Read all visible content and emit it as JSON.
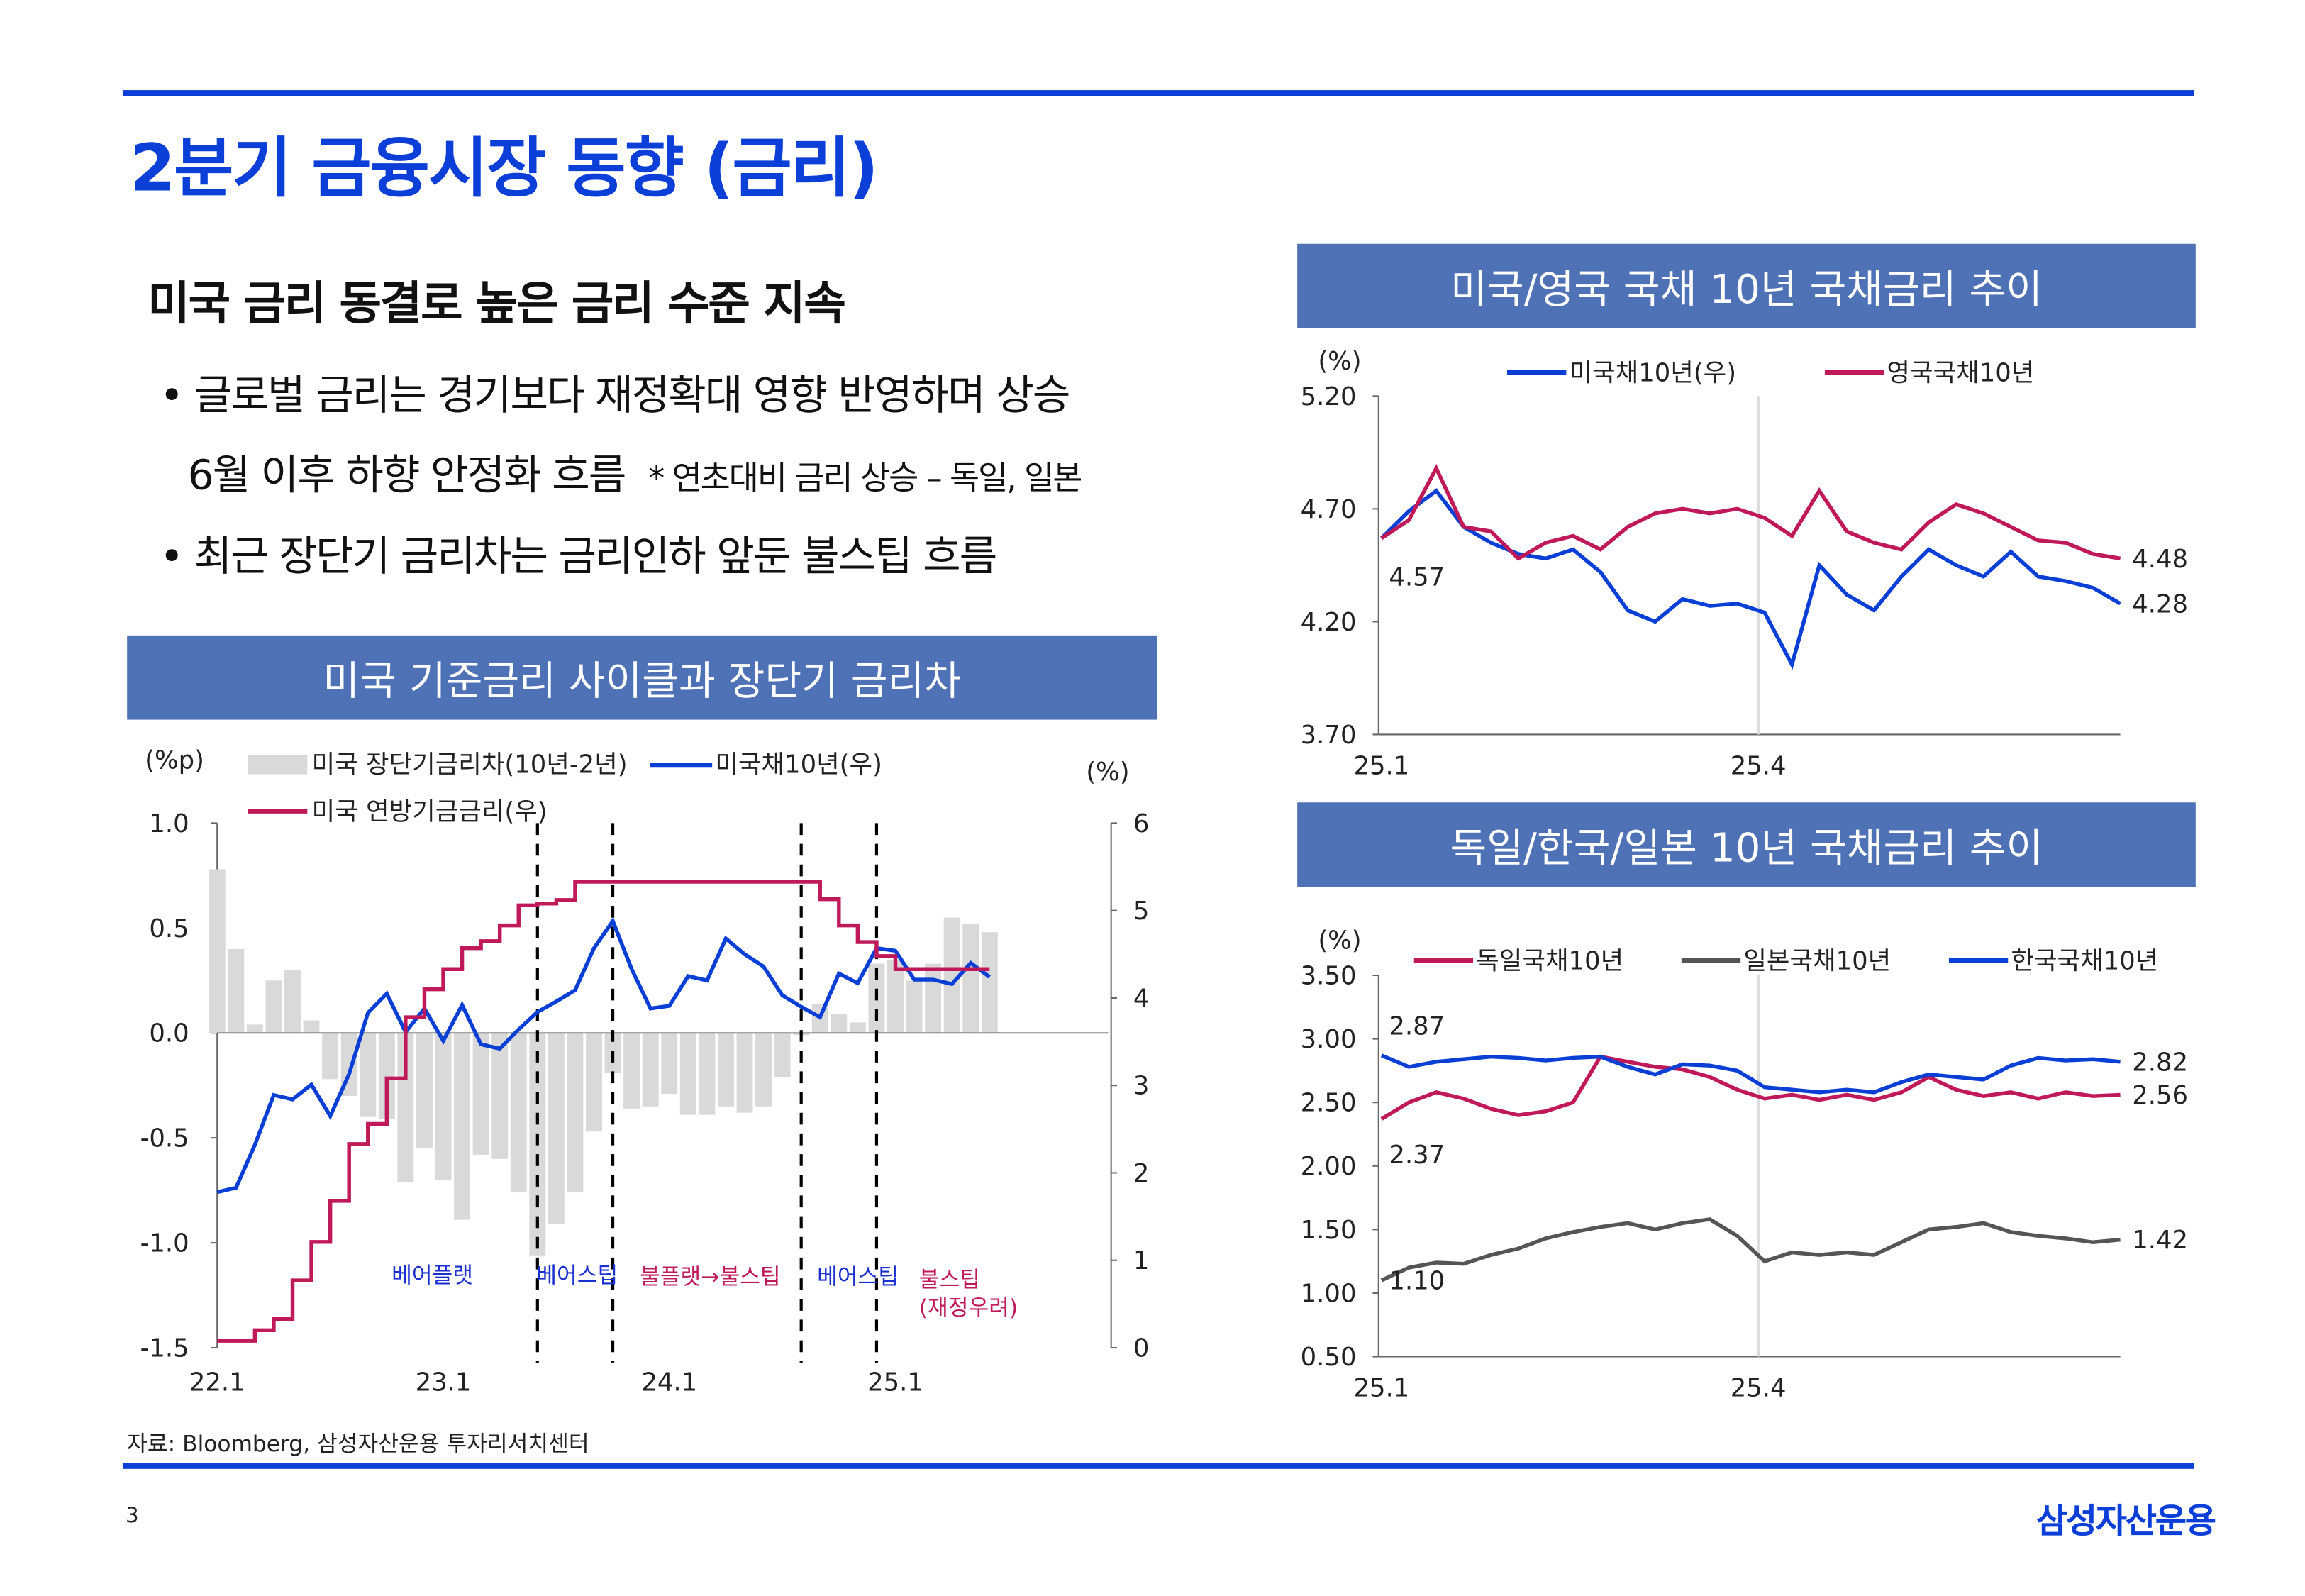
{
  "page": {
    "title": "2분기 금융시장 동향 (금리)",
    "subtitle": "미국 금리 동결로 높은 금리 수준 지속",
    "bullets": [
      "• 글로벌 금리는 경기보다 재정확대 영향 반영하며 상승",
      "6월 이후 하향 안정화 흐름",
      "• 최근 장단기 금리차는 금리인하 앞둔 불스팁 흐름"
    ],
    "note": "* 연초대비 금리 상승 – 독일, 일본",
    "source": "자료: Bloomberg, 삼성자산운용 투자리서치센터",
    "page_number": "3",
    "logo": "삼성자산운용",
    "accent": "#0b3fd8",
    "header_color": "#4f72b6"
  },
  "chart_data": [
    {
      "title": "미국 기준금리 사이클과 장단기 금리차",
      "type": "bar+line",
      "left_unit": "(%p)",
      "right_unit": "(%)",
      "ylim_left": [
        -1.5,
        1.0
      ],
      "yticks_left": [
        "1.0",
        "0.5",
        "0.0",
        "-0.5",
        "-1.0",
        "-1.5"
      ],
      "ylim_right": [
        0,
        6
      ],
      "yticks_right": [
        "6",
        "5",
        "4",
        "3",
        "2",
        "1",
        "0"
      ],
      "xticks": [
        "22.1",
        "23.1",
        "24.1",
        "25.1"
      ],
      "x_start": "2022-01",
      "series": [
        {
          "name": "미국 장단기금리차(10년-2년)",
          "axis": "left",
          "kind": "bar",
          "color": "#d9d9d9",
          "values": [
            0.78,
            0.4,
            0.04,
            0.25,
            0.3,
            0.06,
            -0.22,
            -0.3,
            -0.4,
            -0.41,
            -0.71,
            -0.55,
            -0.7,
            -0.89,
            -0.58,
            -0.6,
            -0.76,
            -1.06,
            -0.91,
            -0.76,
            -0.47,
            -0.19,
            -0.36,
            -0.35,
            -0.29,
            -0.39,
            -0.39,
            -0.35,
            -0.38,
            -0.35,
            -0.21,
            -0.01,
            0.14,
            0.09,
            0.05,
            0.33,
            0.35,
            0.25,
            0.33,
            0.55,
            0.52,
            0.48
          ]
        },
        {
          "name": "미국채10년(우)",
          "axis": "right",
          "kind": "line",
          "color": "#0a3fd6",
          "values": [
            1.78,
            1.83,
            2.32,
            2.89,
            2.84,
            3.01,
            2.65,
            3.13,
            3.83,
            4.05,
            3.61,
            3.88,
            3.51,
            3.92,
            3.47,
            3.42,
            3.64,
            3.84,
            3.96,
            4.09,
            4.57,
            4.88,
            4.33,
            3.88,
            3.91,
            4.25,
            4.2,
            4.68,
            4.5,
            4.36,
            4.03,
            3.9,
            3.78,
            4.28,
            4.17,
            4.57,
            4.54,
            4.21,
            4.21,
            4.16,
            4.4,
            4.24
          ]
        },
        {
          "name": "미국 연방기금금리(우)",
          "axis": "right",
          "kind": "step",
          "color": "#c0195a",
          "values": [
            0.08,
            0.08,
            0.2,
            0.33,
            0.77,
            1.21,
            1.68,
            2.33,
            2.56,
            3.08,
            3.78,
            4.1,
            4.33,
            4.57,
            4.65,
            4.83,
            5.06,
            5.08,
            5.12,
            5.33,
            5.33,
            5.33,
            5.33,
            5.33,
            5.33,
            5.33,
            5.33,
            5.33,
            5.33,
            5.33,
            5.33,
            5.33,
            5.13,
            4.83,
            4.64,
            4.48,
            4.33,
            4.33,
            4.33,
            4.33,
            4.33,
            4.33
          ]
        }
      ],
      "phase_lines": [
        "2023-06",
        "2023-10",
        "2024-08",
        "2024-12"
      ],
      "annotations": [
        {
          "text": "베어플랫",
          "color": "#1a2fd0"
        },
        {
          "text": "베어스팁",
          "color": "#1a2fd0"
        },
        {
          "text": "불플랫→불스팁",
          "color": "#c0195a"
        },
        {
          "text": "베어스팁",
          "color": "#1a2fd0"
        },
        {
          "text": "불스팁",
          "color": "#c0195a"
        },
        {
          "text": "(재정우려)",
          "color": "#c0195a"
        }
      ]
    },
    {
      "title": "미국/영국 국채 10년 국채금리 추이",
      "type": "line",
      "unit": "(%)",
      "ylim": [
        3.7,
        5.2
      ],
      "yticks": [
        "5.20",
        "4.70",
        "4.20",
        "3.70"
      ],
      "xticks": [
        "25.1",
        "25.4"
      ],
      "x_frequency": "weekly from 2025-01",
      "series": [
        {
          "name": "미국채10년(우)",
          "color": "#0a3fd6",
          "end_label": "4.28",
          "start_label": "4.57",
          "values": [
            4.57,
            4.69,
            4.78,
            4.62,
            4.55,
            4.5,
            4.48,
            4.52,
            4.42,
            4.25,
            4.2,
            4.3,
            4.27,
            4.28,
            4.24,
            4.01,
            4.45,
            4.32,
            4.25,
            4.4,
            4.52,
            4.45,
            4.4,
            4.51,
            4.4,
            4.38,
            4.35,
            4.28
          ]
        },
        {
          "name": "영국국채10년",
          "color": "#c0195a",
          "end_label": "4.48",
          "values": [
            4.57,
            4.65,
            4.88,
            4.62,
            4.6,
            4.48,
            4.55,
            4.58,
            4.52,
            4.62,
            4.68,
            4.7,
            4.68,
            4.7,
            4.66,
            4.58,
            4.78,
            4.6,
            4.55,
            4.52,
            4.64,
            4.72,
            4.68,
            4.62,
            4.56,
            4.55,
            4.5,
            4.48
          ]
        }
      ]
    },
    {
      "title": "독일/한국/일본 10년 국채금리 추이",
      "type": "line",
      "unit": "(%)",
      "ylim": [
        0.5,
        3.5
      ],
      "yticks": [
        "3.50",
        "3.00",
        "2.50",
        "2.00",
        "1.50",
        "1.00",
        "0.50"
      ],
      "xticks": [
        "25.1",
        "25.4"
      ],
      "x_frequency": "weekly from 2025-01",
      "series": [
        {
          "name": "독일국채10년",
          "color": "#c0195a",
          "start_label": "2.37",
          "end_label": "2.56",
          "values": [
            2.37,
            2.5,
            2.58,
            2.53,
            2.45,
            2.4,
            2.43,
            2.5,
            2.86,
            2.82,
            2.78,
            2.76,
            2.7,
            2.6,
            2.53,
            2.56,
            2.52,
            2.56,
            2.52,
            2.58,
            2.7,
            2.6,
            2.55,
            2.58,
            2.53,
            2.58,
            2.55,
            2.56
          ]
        },
        {
          "name": "일본국채10년",
          "color": "#555555",
          "start_label": "1.10",
          "end_label": "1.42",
          "values": [
            1.1,
            1.2,
            1.24,
            1.23,
            1.3,
            1.35,
            1.43,
            1.48,
            1.52,
            1.55,
            1.5,
            1.55,
            1.58,
            1.45,
            1.25,
            1.32,
            1.3,
            1.32,
            1.3,
            1.4,
            1.5,
            1.52,
            1.55,
            1.48,
            1.45,
            1.43,
            1.4,
            1.42
          ]
        },
        {
          "name": "한국국채10년",
          "color": "#0a3fd6",
          "start_label": "2.87",
          "end_label": "2.82",
          "values": [
            2.87,
            2.78,
            2.82,
            2.84,
            2.86,
            2.85,
            2.83,
            2.85,
            2.86,
            2.78,
            2.72,
            2.8,
            2.79,
            2.75,
            2.62,
            2.6,
            2.58,
            2.6,
            2.58,
            2.66,
            2.72,
            2.7,
            2.68,
            2.79,
            2.85,
            2.83,
            2.84,
            2.82
          ]
        }
      ]
    }
  ]
}
